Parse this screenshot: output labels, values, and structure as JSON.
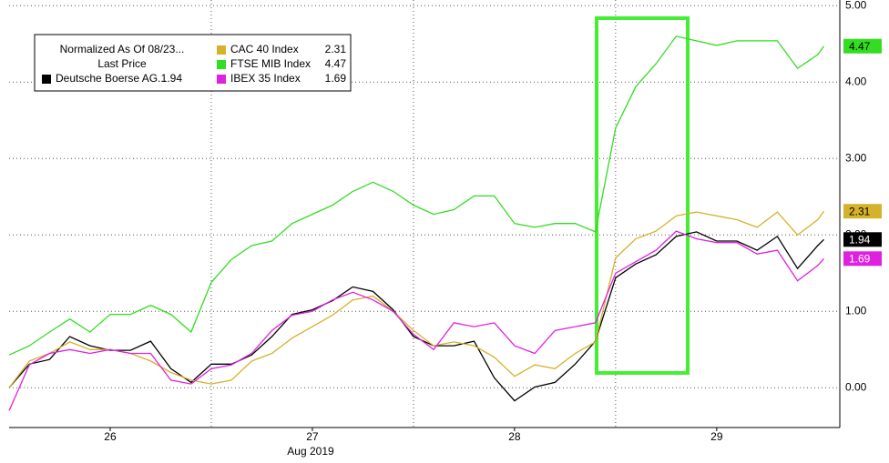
{
  "chart_data": {
    "type": "line",
    "legend_title": "Normalized As Of 08/23...",
    "legend_subtitle": "Last Price",
    "x_label": "Aug 2019",
    "x": [
      25.5,
      25.6,
      25.7,
      25.8,
      25.9,
      26.0,
      26.1,
      26.2,
      26.3,
      26.4,
      26.5,
      26.6,
      26.7,
      26.8,
      26.9,
      27.0,
      27.1,
      27.2,
      27.3,
      27.4,
      27.5,
      27.6,
      27.7,
      27.8,
      27.9,
      28.0,
      28.1,
      28.2,
      28.3,
      28.4,
      28.5,
      28.6,
      28.7,
      28.8,
      28.9,
      29.0,
      29.1,
      29.2,
      29.3,
      29.4,
      29.5,
      29.53
    ],
    "xlim": [
      25.5,
      29.6
    ],
    "xticks": [
      26,
      27,
      28,
      29
    ],
    "x_separators": [
      26.5,
      27.5,
      28.5
    ],
    "ylim": [
      -0.52,
      5.05
    ],
    "yticks": [
      {
        "value": 0,
        "label": "0.00"
      },
      {
        "value": 1,
        "label": "1.00"
      },
      {
        "value": 2,
        "label": "2.00"
      },
      {
        "value": 3,
        "label": "3.00"
      },
      {
        "value": 4,
        "label": "4.00"
      },
      {
        "value": 5,
        "label": "5.00"
      }
    ],
    "grid": true,
    "legend_position": "upper left",
    "series": [
      {
        "name": "Deutsche Boerse AG...",
        "color": "#000000",
        "last_price": 1.94,
        "values": [
          0.0,
          0.31,
          0.37,
          0.67,
          0.55,
          0.49,
          0.49,
          0.61,
          0.25,
          0.07,
          0.31,
          0.31,
          0.43,
          0.67,
          0.96,
          1.02,
          1.14,
          1.32,
          1.26,
          1.02,
          0.67,
          0.55,
          0.55,
          0.61,
          0.13,
          -0.17,
          0.01,
          0.07,
          0.31,
          0.61,
          1.44,
          1.62,
          1.74,
          1.98,
          2.04,
          1.92,
          1.92,
          1.8,
          1.98,
          1.56,
          1.86,
          1.94
        ]
      },
      {
        "name": "CAC 40 Index",
        "color": "#d4b22a",
        "last_price": 2.31,
        "values": [
          0.0,
          0.35,
          0.45,
          0.6,
          0.5,
          0.5,
          0.45,
          0.35,
          0.2,
          0.1,
          0.05,
          0.1,
          0.35,
          0.45,
          0.65,
          0.8,
          0.95,
          1.15,
          1.2,
          1.0,
          0.75,
          0.55,
          0.6,
          0.55,
          0.4,
          0.15,
          0.3,
          0.25,
          0.45,
          0.6,
          1.7,
          1.95,
          2.05,
          2.25,
          2.3,
          2.25,
          2.2,
          2.1,
          2.3,
          2.0,
          2.2,
          2.31
        ]
      },
      {
        "name": "FTSE MIB Index",
        "color": "#33dd22",
        "last_price": 4.47,
        "values": [
          0.43,
          0.55,
          0.73,
          0.9,
          0.73,
          0.96,
          0.96,
          1.08,
          0.96,
          0.73,
          1.38,
          1.68,
          1.86,
          1.92,
          2.15,
          2.27,
          2.39,
          2.57,
          2.69,
          2.57,
          2.39,
          2.27,
          2.33,
          2.51,
          2.51,
          2.15,
          2.1,
          2.15,
          2.15,
          2.04,
          3.4,
          3.94,
          4.24,
          4.6,
          4.54,
          4.48,
          4.54,
          4.54,
          4.54,
          4.18,
          4.36,
          4.47
        ]
      },
      {
        "name": "IBEX 35 Index",
        "color": "#e020e0",
        "last_price": 1.69,
        "values": [
          -0.3,
          0.3,
          0.45,
          0.5,
          0.45,
          0.5,
          0.45,
          0.45,
          0.1,
          0.05,
          0.25,
          0.3,
          0.45,
          0.75,
          0.95,
          1.0,
          1.15,
          1.25,
          1.15,
          1.0,
          0.7,
          0.5,
          0.85,
          0.8,
          0.85,
          0.55,
          0.45,
          0.75,
          0.8,
          0.85,
          1.5,
          1.65,
          1.8,
          2.05,
          1.95,
          1.9,
          1.9,
          1.75,
          1.8,
          1.4,
          1.6,
          1.69
        ]
      }
    ]
  }
}
